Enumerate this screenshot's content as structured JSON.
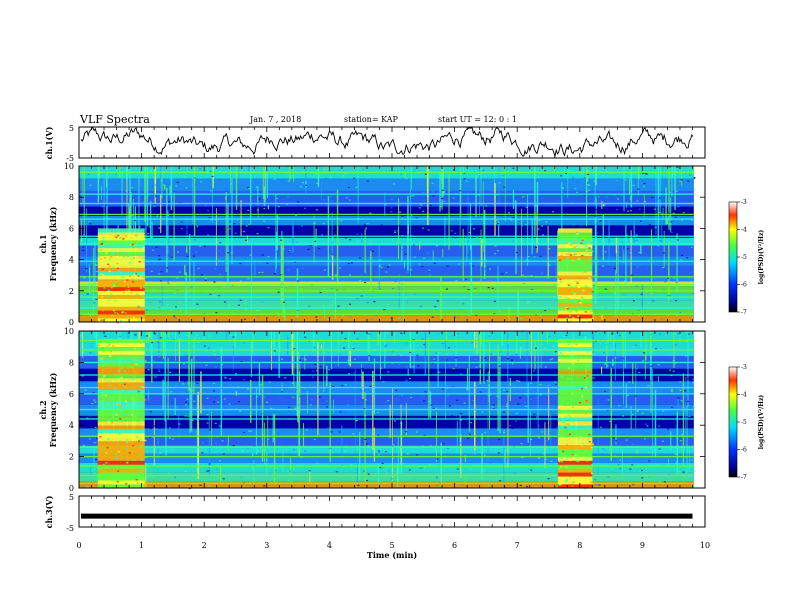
{
  "header": {
    "title": "VLF Spectra",
    "date": "Jan. 7 , 2018",
    "station": "station= KAP",
    "start": "start UT =   12: 0  : 1"
  },
  "chart_data": [
    {
      "type": "line",
      "ylabel": "ch.1(V)",
      "ylim": [
        -5,
        5
      ],
      "yticks": [
        "5",
        "-5"
      ],
      "xlim": [
        0,
        10
      ],
      "description_series": "noisy waveform oscillating around ~0.6 V with amplitude ~2 V across the full 0–9.8 min range"
    },
    {
      "type": "heatmap",
      "channel_label": "ch.1",
      "ylabel": "Frequency (kHz)",
      "ylim": [
        0,
        10
      ],
      "yticks": [
        "0",
        "2",
        "4",
        "6",
        "8",
        "10"
      ],
      "xlim": [
        0,
        10
      ],
      "colorbar": {
        "label": "log(PSD)(V²/Hz)",
        "range": [
          -7,
          -3
        ],
        "ticks": [
          "-3",
          "-4",
          "-5",
          "-6",
          "-7"
        ]
      },
      "bursts_min": [
        [
          0.3,
          1.05
        ],
        [
          7.65,
          8.2
        ]
      ]
    },
    {
      "type": "heatmap",
      "channel_label": "ch.2",
      "ylabel": "Frequency (kHz)",
      "ylim": [
        0,
        10
      ],
      "yticks": [
        "0",
        "2",
        "4",
        "6",
        "8",
        "10"
      ],
      "xlim": [
        0,
        10
      ],
      "colorbar": {
        "label": "log(PSD)(V²/Hz)",
        "range": [
          -7,
          -3
        ],
        "ticks": [
          "-3",
          "-4",
          "-5",
          "-6",
          "-7"
        ]
      },
      "bursts_min": [
        [
          0.3,
          1.05
        ],
        [
          7.65,
          8.2
        ]
      ]
    },
    {
      "type": "line",
      "ylabel": "ch.3(V)",
      "ylim": [
        -5,
        5
      ],
      "yticks": [
        "5",
        "-5"
      ],
      "xlim": [
        0,
        10
      ],
      "xlabel": "Time (min)",
      "xticks": [
        "0",
        "1",
        "2",
        "3",
        "4",
        "5",
        "6",
        "7",
        "8",
        "9",
        "10"
      ],
      "series": [
        {
          "x": [
            0,
            9.8
          ],
          "y": [
            -1.5,
            -1.5
          ]
        }
      ]
    }
  ],
  "colors": {
    "background": "#ffffff",
    "dark": "#000066",
    "mid": "#2b6cff",
    "cyan": "#22ffdd",
    "green": "#66ff33",
    "yellow": "#ffff33",
    "red": "#ff2200"
  }
}
